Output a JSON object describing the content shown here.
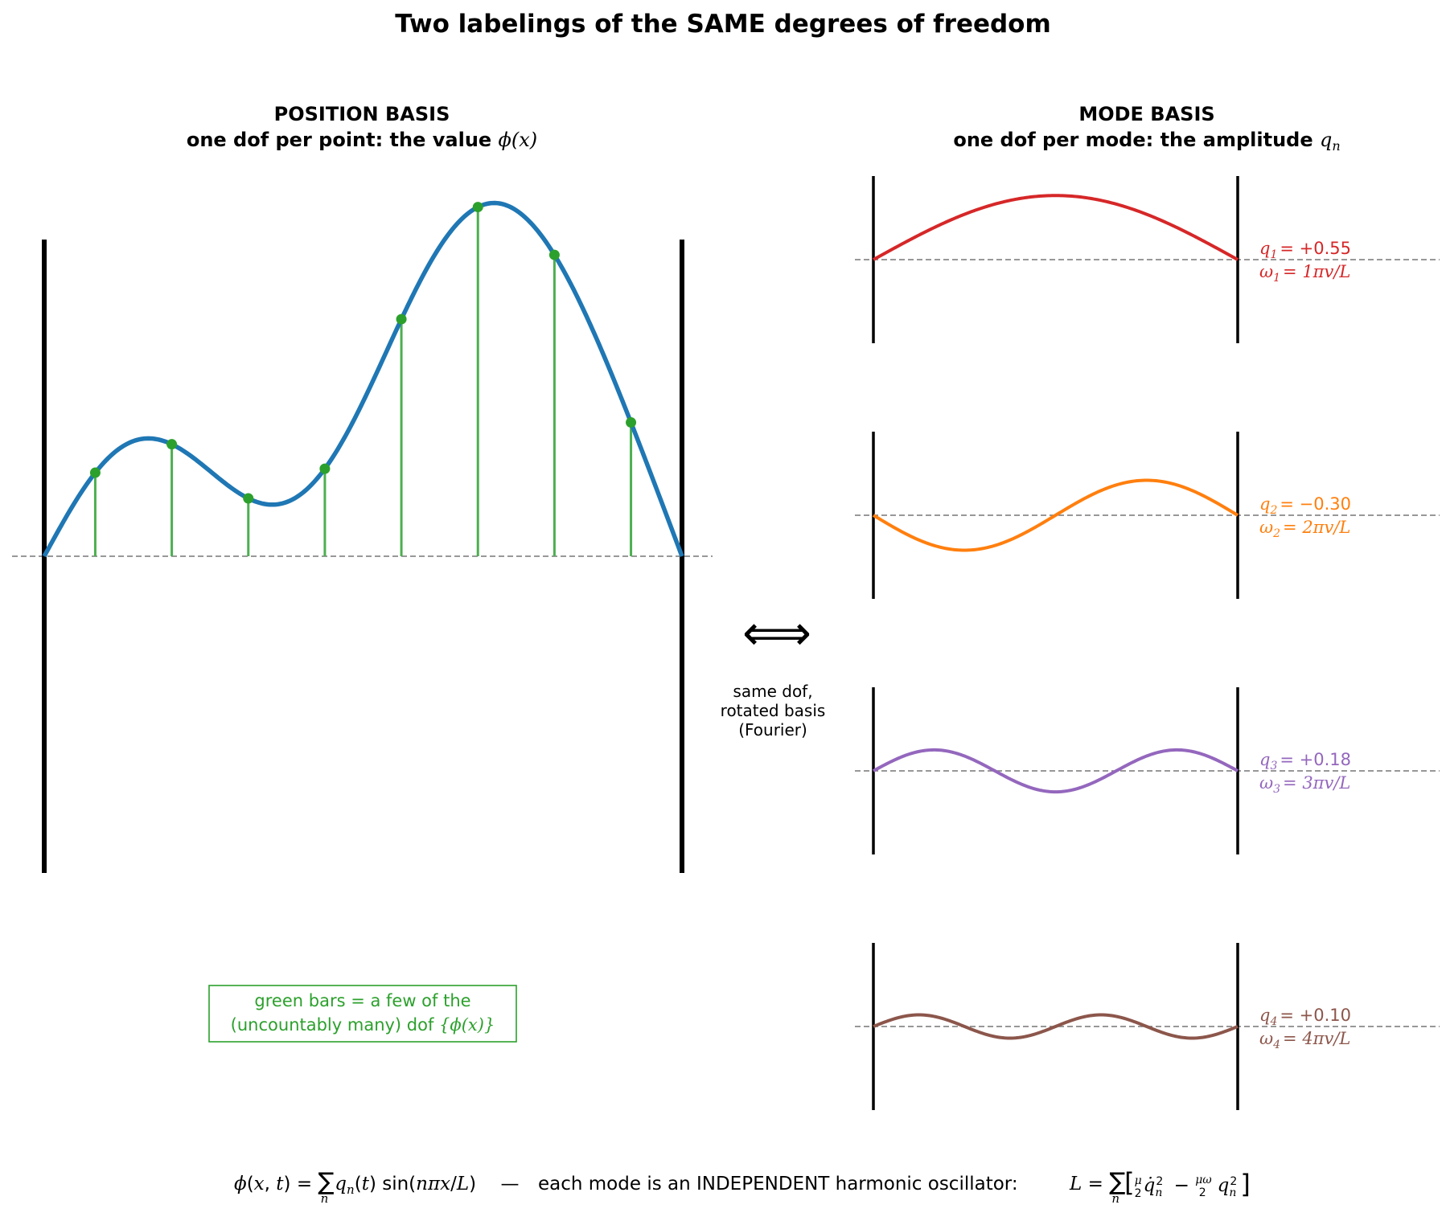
{
  "title": "Two labelings of the SAME degrees of freedom",
  "left": {
    "heading": "POSITION BASIS",
    "subheading_text": "one dof per point: the value ",
    "subheading_math": "ϕ(x)",
    "note_line1": "green bars = a few of the",
    "note_line2_text": "(uncountably many) dof ",
    "note_line2_math": "{ϕ(x)}",
    "field_coefficients": [
      0.55,
      -0.3,
      0.18,
      0.1
    ],
    "sample_x_fraction": [
      0.08,
      0.2,
      0.32,
      0.44,
      0.56,
      0.68,
      0.8,
      0.92
    ],
    "colors": {
      "curve": "#1f77b4",
      "bars": "#4caf50",
      "dots": "#2ca02c",
      "walls": "#000000"
    }
  },
  "right": {
    "heading": "MODE BASIS",
    "subheading_text": "one dof per mode: the amplitude ",
    "subheading_math": "q",
    "subheading_sub": "n",
    "modes": [
      {
        "n": 1,
        "q_label": "q",
        "q_sub": "1",
        "q_value": "= +0.55",
        "w_label": "ω",
        "w_sub": "1",
        "w_value": "= 1πv/L",
        "amplitude": 0.55,
        "color": "#d62728"
      },
      {
        "n": 2,
        "q_label": "q",
        "q_sub": "2",
        "q_value": "= −0.30",
        "w_label": "ω",
        "w_sub": "2",
        "w_value": "= 2πv/L",
        "amplitude": -0.3,
        "color": "#ff7f0e"
      },
      {
        "n": 3,
        "q_label": "q",
        "q_sub": "3",
        "q_value": "= +0.18",
        "w_label": "ω",
        "w_sub": "3",
        "w_value": "= 3πv/L",
        "amplitude": 0.18,
        "color": "#9467bd"
      },
      {
        "n": 4,
        "q_label": "q",
        "q_sub": "4",
        "q_value": "= +0.10",
        "w_label": "ω",
        "w_sub": "4",
        "w_value": "= 4πv/L",
        "amplitude": 0.1,
        "color": "#8c564b"
      }
    ]
  },
  "middle": {
    "arrow": "⟺",
    "line1": "same dof,",
    "line2": "rotated basis",
    "line3": "(Fourier)"
  },
  "footer": {
    "eq_left": "ϕ(x, t) = Σ q (t) sin(nπx/L)",
    "sep": "—",
    "text": "each mode is an INDEPENDENT harmonic oscillator:",
    "eq_right": "L = Σ [ μ/2 q̇² − μω²/2 q² ]"
  }
}
